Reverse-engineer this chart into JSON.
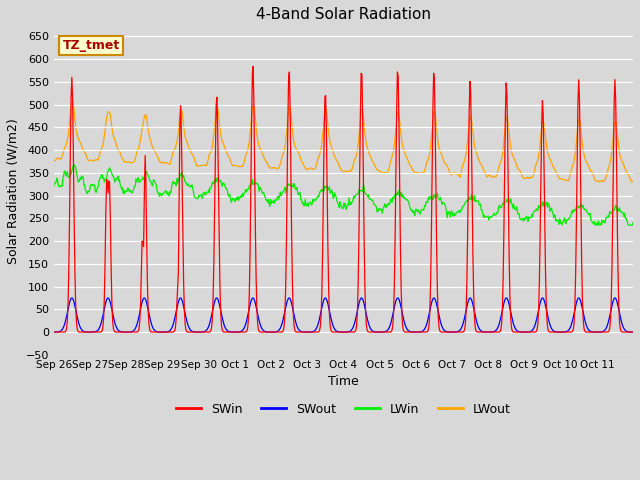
{
  "title": "4-Band Solar Radiation",
  "xlabel": "Time",
  "ylabel": "Solar Radiation (W/m2)",
  "ylim": [
    -50,
    670
  ],
  "yticks": [
    -50,
    0,
    50,
    100,
    150,
    200,
    250,
    300,
    350,
    400,
    450,
    500,
    550,
    600,
    650
  ],
  "fig_bg_color": "#d8d8d8",
  "plot_bg_color": "#d8d8d8",
  "grid_color": "white",
  "swin_color": "red",
  "swout_color": "blue",
  "lwin_color": "#00ee00",
  "lwout_color": "orange",
  "legend_label": "TZ_tmet",
  "legend_bg": "#ffffcc",
  "legend_border": "#cc8800",
  "series_labels": [
    "SWin",
    "SWout",
    "LWin",
    "LWout"
  ],
  "series_colors": [
    "red",
    "blue",
    "#00ee00",
    "orange"
  ],
  "n_days": 16,
  "tick_labels": [
    "Sep 26",
    "Sep 27",
    "Sep 28",
    "Sep 29",
    "Sep 30",
    "Oct 1",
    "Oct 2",
    "Oct 3",
    "Oct 4",
    "Oct 5",
    "Oct 6",
    "Oct 7",
    "Oct 8",
    "Oct 9",
    "Oct 10",
    "Oct 11"
  ]
}
